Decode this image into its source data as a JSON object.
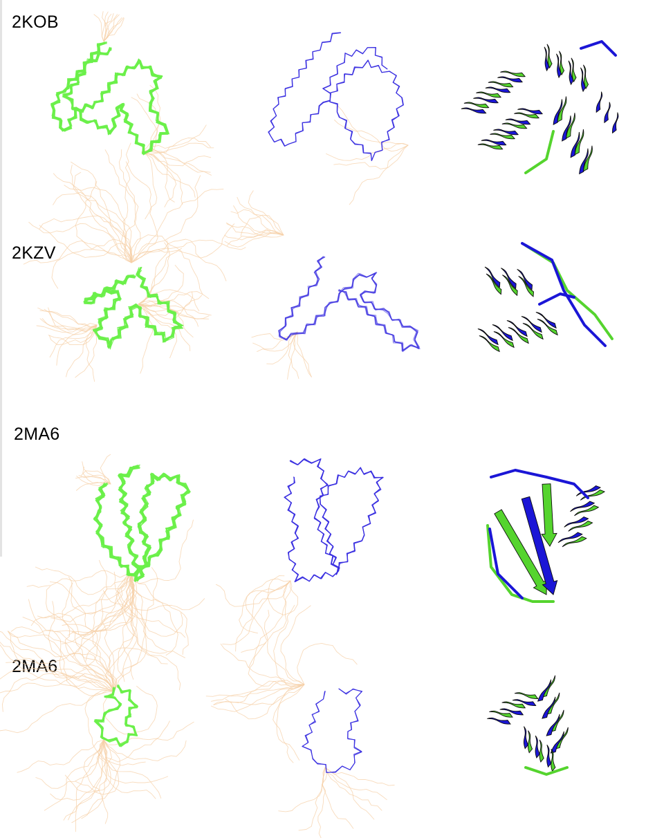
{
  "figure": {
    "rows": [
      {
        "id": "2KOB",
        "label": "2KOB"
      },
      {
        "id": "2KZV",
        "label": "2KZV"
      },
      {
        "id": "2MA6-a",
        "label": "2MA6"
      },
      {
        "id": "2MA6-b",
        "label": "2MA6"
      }
    ]
  },
  "colors": {
    "ensemble_core": "#6cf04a",
    "ensemble_flexible": "#f6cfa6",
    "backbone_blue": "#3a2fe0",
    "cartoon_blue": "#1b16d6",
    "cartoon_green": "#55d42e",
    "cartoon_outline": "#0a0a0a"
  },
  "panels": {
    "ensemble": "green NMR ensemble with flexible tails",
    "predicted": "blue backbone trace",
    "superposition": "cartoon overlay"
  }
}
